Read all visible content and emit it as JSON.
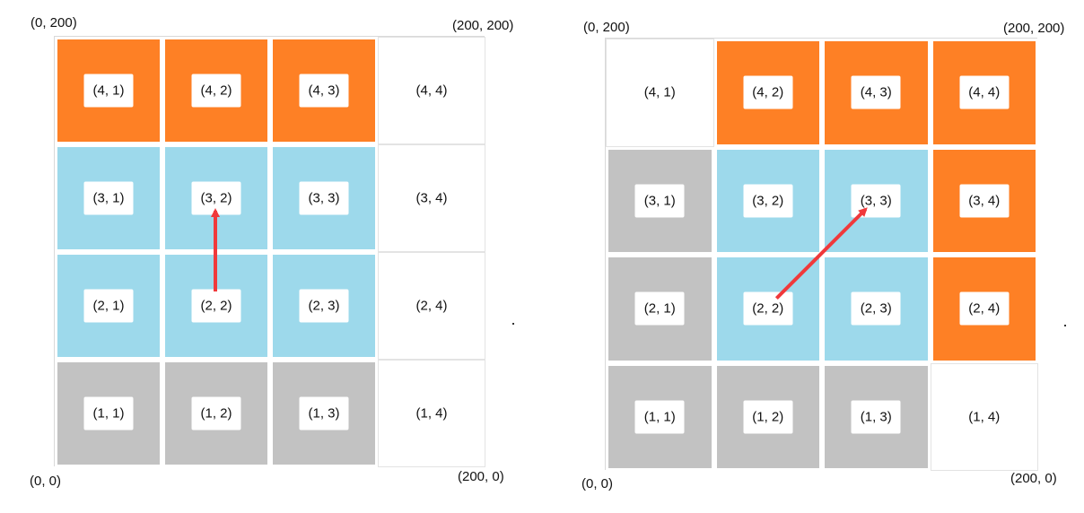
{
  "colors": {
    "orange": "#fe8025",
    "blue": "#9dd9eb",
    "gray": "#c2c2c2",
    "empty": "#ffffff",
    "arrow": "#f0393b"
  },
  "panels": [
    {
      "corners": {
        "top_left": "(0, 200)",
        "top_right": "(200, 200)",
        "bottom_left": "(0, 0)",
        "bottom_right": "(200, 0)"
      },
      "rows": [
        [
          {
            "label": "(4, 1)",
            "fill": "orange"
          },
          {
            "label": "(4, 2)",
            "fill": "orange"
          },
          {
            "label": "(4, 3)",
            "fill": "orange"
          },
          {
            "label": "(4, 4)",
            "fill": "empty"
          }
        ],
        [
          {
            "label": "(3, 1)",
            "fill": "blue"
          },
          {
            "label": "(3, 2)",
            "fill": "blue"
          },
          {
            "label": "(3, 3)",
            "fill": "blue"
          },
          {
            "label": "(3, 4)",
            "fill": "empty"
          }
        ],
        [
          {
            "label": "(2, 1)",
            "fill": "blue"
          },
          {
            "label": "(2, 2)",
            "fill": "blue"
          },
          {
            "label": "(2, 3)",
            "fill": "blue"
          },
          {
            "label": "(2, 4)",
            "fill": "empty"
          }
        ],
        [
          {
            "label": "(1, 1)",
            "fill": "gray"
          },
          {
            "label": "(1, 2)",
            "fill": "gray"
          },
          {
            "label": "(1, 3)",
            "fill": "gray"
          },
          {
            "label": "(1, 4)",
            "fill": "empty"
          }
        ]
      ],
      "arrow": {
        "from": "(2, 2)",
        "to": "(3, 2)"
      }
    },
    {
      "corners": {
        "top_left": "(0, 200)",
        "top_right": "(200, 200)",
        "bottom_left": "(0, 0)",
        "bottom_right": "(200, 0)"
      },
      "rows": [
        [
          {
            "label": "(4, 1)",
            "fill": "empty"
          },
          {
            "label": "(4, 2)",
            "fill": "orange"
          },
          {
            "label": "(4, 3)",
            "fill": "orange"
          },
          {
            "label": "(4, 4)",
            "fill": "orange"
          }
        ],
        [
          {
            "label": "(3, 1)",
            "fill": "gray"
          },
          {
            "label": "(3, 2)",
            "fill": "blue"
          },
          {
            "label": "(3, 3)",
            "fill": "blue"
          },
          {
            "label": "(3, 4)",
            "fill": "orange"
          }
        ],
        [
          {
            "label": "(2, 1)",
            "fill": "gray"
          },
          {
            "label": "(2, 2)",
            "fill": "blue"
          },
          {
            "label": "(2, 3)",
            "fill": "blue"
          },
          {
            "label": "(2, 4)",
            "fill": "orange"
          }
        ],
        [
          {
            "label": "(1, 1)",
            "fill": "gray"
          },
          {
            "label": "(1, 2)",
            "fill": "gray"
          },
          {
            "label": "(1, 3)",
            "fill": "gray"
          },
          {
            "label": "(1, 4)",
            "fill": "empty"
          }
        ]
      ],
      "arrow": {
        "from": "(2, 2)",
        "to": "(3, 3)"
      }
    }
  ]
}
